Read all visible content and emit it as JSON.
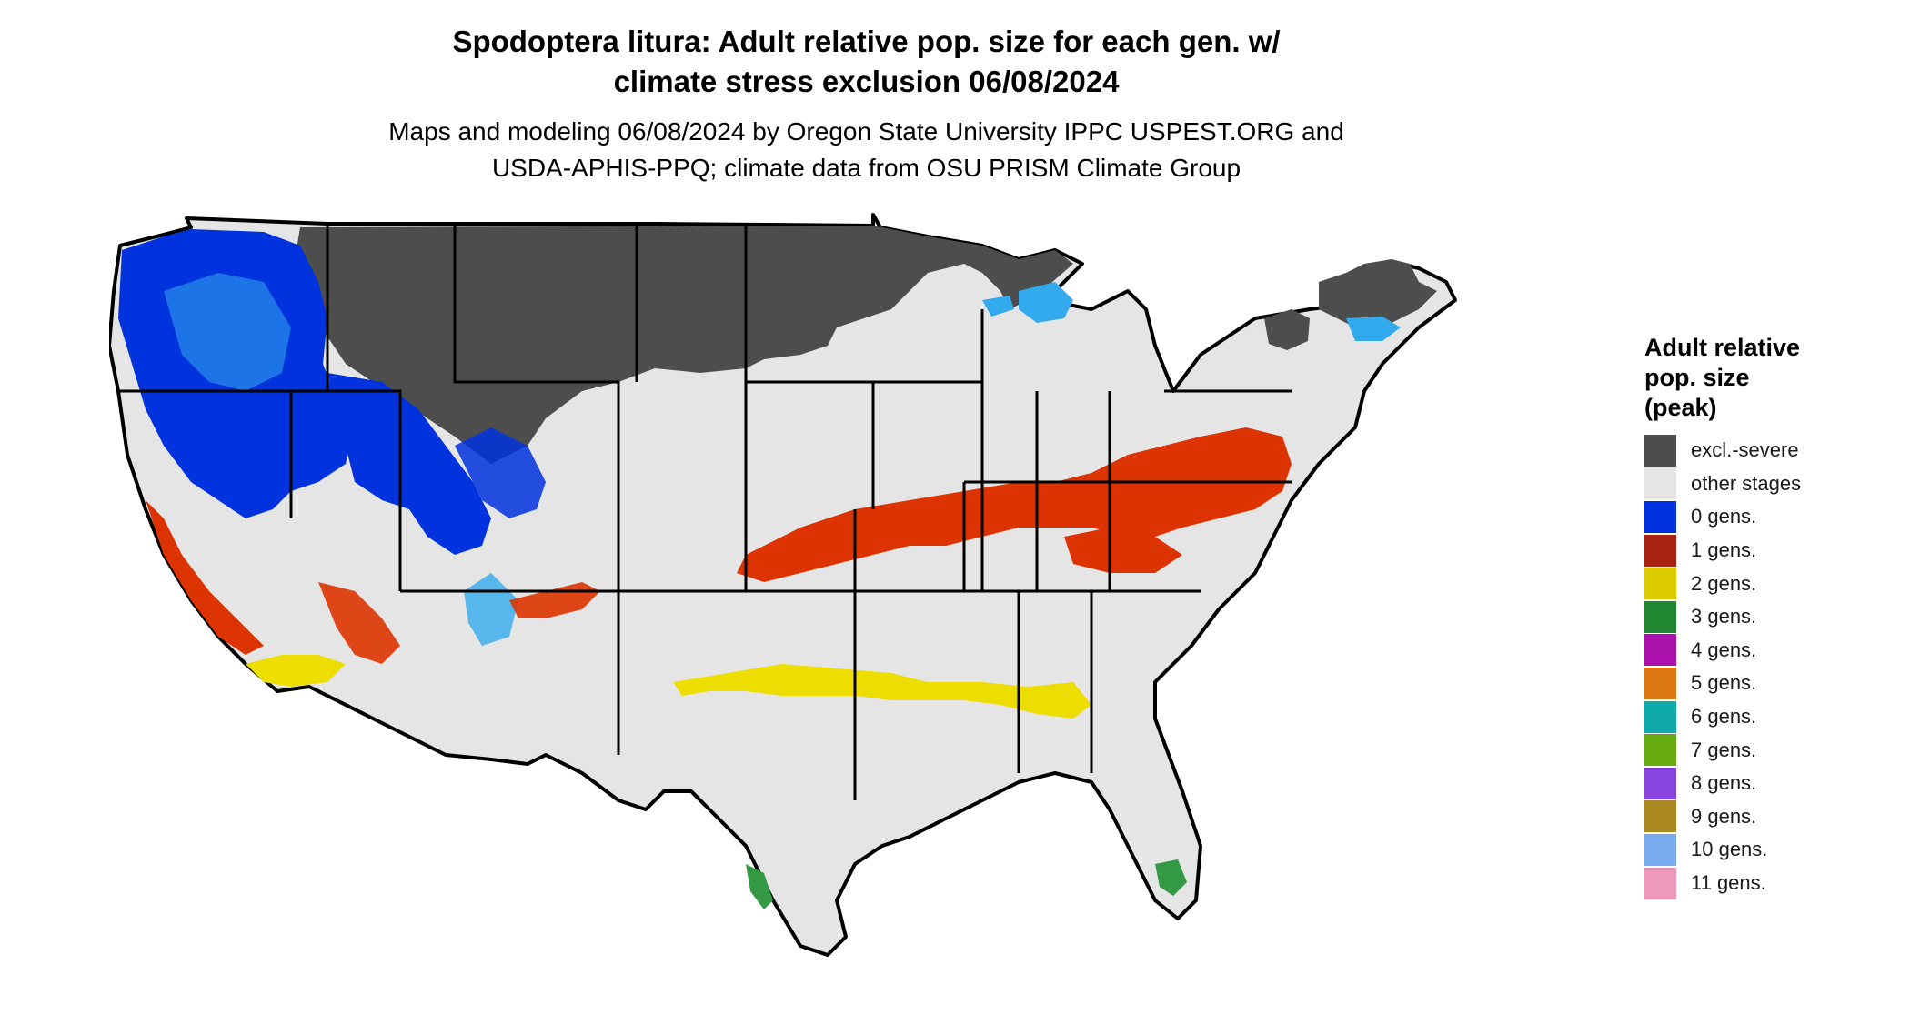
{
  "title": {
    "line1": "Spodoptera litura: Adult relative pop. size for each gen. w/",
    "line2": "climate stress exclusion 06/08/2024"
  },
  "subtitle": {
    "line1": "Maps and modeling 06/08/2024 by Oregon State University IPPC USPEST.ORG and",
    "line2": "USDA-APHIS-PPQ; climate data from OSU PRISM Climate Group"
  },
  "legend": {
    "title_line1": "Adult relative",
    "title_line2": "pop. size",
    "title_line3": "(peak)",
    "items": [
      {
        "label": "excl.-severe",
        "color": "#4d4d4d"
      },
      {
        "label": "other stages",
        "color": "#e5e5e5"
      },
      {
        "label": "0 gens.",
        "color": "#0033dd"
      },
      {
        "label": "1 gens.",
        "color": "#aa2211"
      },
      {
        "label": "2 gens.",
        "color": "#ddcc00"
      },
      {
        "label": "3 gens.",
        "color": "#228833"
      },
      {
        "label": "4 gens.",
        "color": "#aa11aa"
      },
      {
        "label": "5 gens.",
        "color": "#dd7711"
      },
      {
        "label": "6 gens.",
        "color": "#11aaaa"
      },
      {
        "label": "7 gens.",
        "color": "#66aa11"
      },
      {
        "label": "8 gens.",
        "color": "#8844dd"
      },
      {
        "label": "9 gens.",
        "color": "#aa8822"
      },
      {
        "label": "10 gens.",
        "color": "#77aaee"
      },
      {
        "label": "11 gens.",
        "color": "#ee99bb"
      }
    ]
  },
  "map_colors": {
    "excluded": "#4d4d4d",
    "other": "#e5e5e5",
    "gen0": "#0033dd",
    "gen0_light": "#33aaee",
    "gen1": "#dd3300",
    "gen2": "#eedd00",
    "gen3": "#339944",
    "border": "#000000"
  }
}
